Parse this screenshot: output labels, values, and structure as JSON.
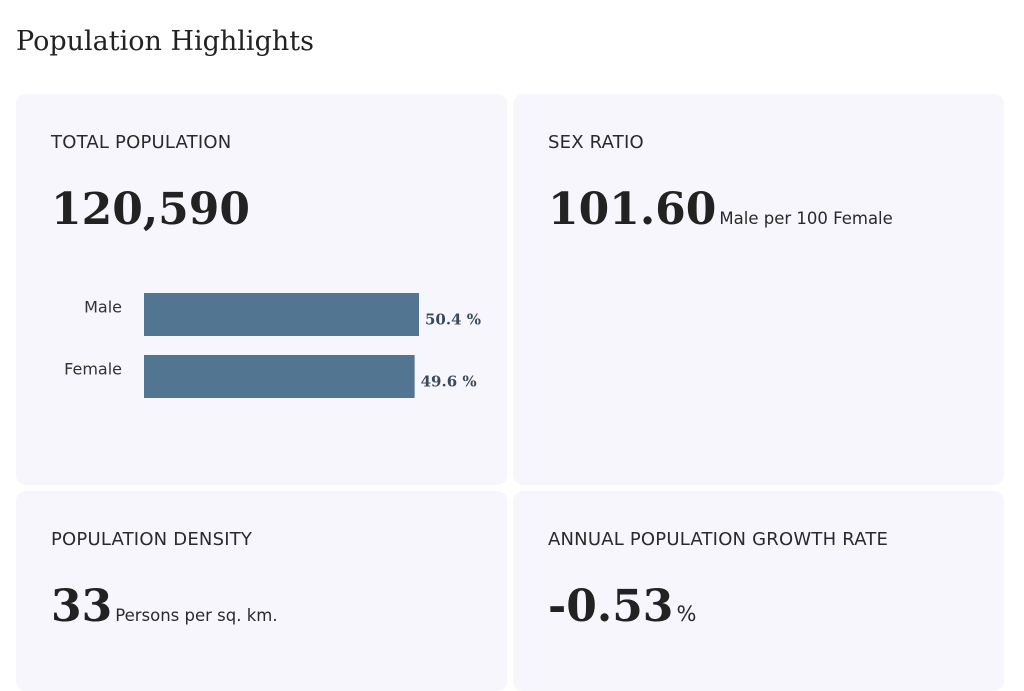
{
  "page": {
    "title": "Population Highlights"
  },
  "cards": {
    "total_population": {
      "label": "TOTAL POPULATION",
      "value": "120,590"
    },
    "sex_ratio": {
      "label": "SEX RATIO",
      "value": "101.60",
      "unit": "Male per 100 Female"
    },
    "density": {
      "label": "POPULATION DENSITY",
      "value": "33",
      "unit": "Persons per sq. km."
    },
    "growth": {
      "label": "ANNUAL POPULATION GROWTH RATE",
      "value": "-0.53",
      "unit": "%"
    }
  },
  "chart_data": {
    "type": "bar",
    "orientation": "horizontal",
    "categories": [
      "Male",
      "Female"
    ],
    "values": [
      50.4,
      49.6
    ],
    "value_labels": [
      "50.4 %",
      "49.6 %"
    ],
    "xlim": [
      0,
      50.4
    ],
    "color": "#527591",
    "title": "",
    "xlabel": "",
    "ylabel": ""
  },
  "colors": {
    "card_background": "#f7f6fc",
    "bar": "#527591",
    "text": "#222222"
  }
}
